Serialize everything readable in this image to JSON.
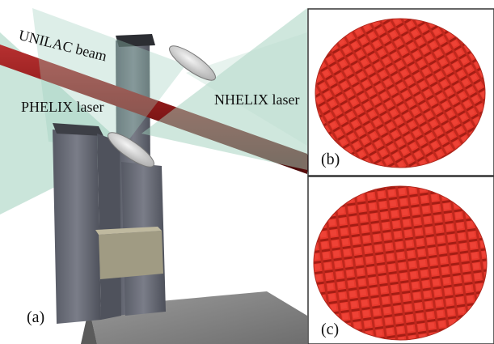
{
  "labels": {
    "unilac_beam": "UNILAC beam",
    "phelix_laser": "PHELIX laser",
    "nhelix_laser": "NHELIX laser",
    "panel_a": "(a)",
    "panel_b": "(b)",
    "panel_c": "(c)"
  },
  "colors": {
    "background": "#ffffff",
    "laser_cone": "#9fcfbc",
    "ion_beam": "#8a1414",
    "stand": "#6b6e78",
    "target_red": "#e8382c",
    "panel_border": "#333333"
  }
}
